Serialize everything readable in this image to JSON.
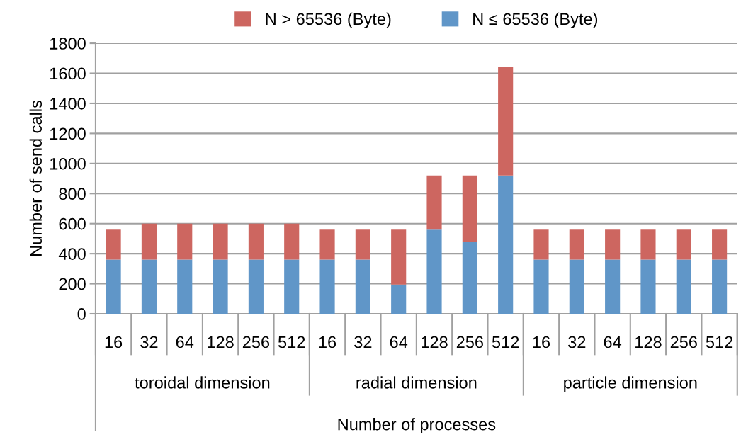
{
  "chart_data": {
    "type": "bar",
    "stacked": true,
    "xlabel": "Number of processes",
    "ylabel": "Number of send calls",
    "categories": [
      "16",
      "32",
      "64",
      "128",
      "256",
      "512",
      "16",
      "32",
      "64",
      "128",
      "256",
      "512",
      "16",
      "32",
      "64",
      "128",
      "256",
      "512"
    ],
    "annotations": [
      "toroidal dimension",
      "radial dimension",
      "particle dimension"
    ],
    "series": [
      {
        "name": "N ≤ 65536 (Byte)",
        "color": "#6096c8",
        "values": [
          360,
          360,
          360,
          360,
          360,
          360,
          360,
          360,
          195,
          560,
          480,
          920,
          360,
          360,
          360,
          360,
          360,
          360
        ]
      },
      {
        "name": "N > 65536 (Byte)",
        "color": "#cd6660",
        "values": [
          200,
          240,
          240,
          240,
          240,
          240,
          200,
          200,
          365,
          360,
          440,
          720,
          200,
          200,
          200,
          200,
          200,
          200
        ]
      }
    ],
    "ylim": [
      0,
      1800
    ],
    "yticks": [
      0,
      200,
      400,
      600,
      800,
      1000,
      1200,
      1400,
      1600,
      1800
    ],
    "grid": "y",
    "legend": "top"
  }
}
